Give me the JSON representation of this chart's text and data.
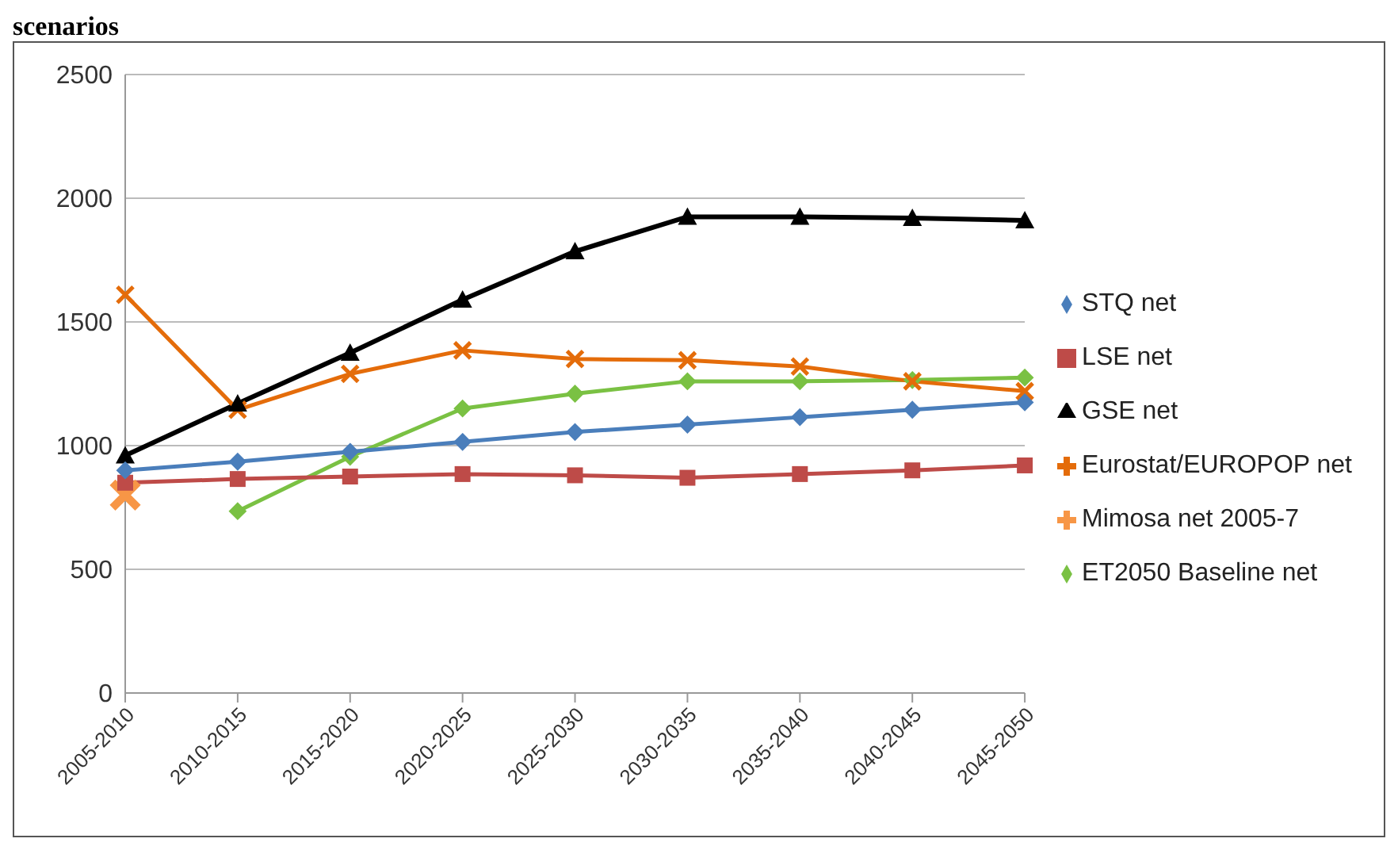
{
  "chart_data": {
    "type": "line",
    "title": "scenarios",
    "categories": [
      "2005-2010",
      "2010-2015",
      "2015-2020",
      "2020-2025",
      "2025-2030",
      "2030-2035",
      "2035-2040",
      "2040-2045",
      "2045-2050"
    ],
    "series": [
      {
        "name": "STQ net",
        "color": "#4a7ebb",
        "marker": "diamond",
        "values": [
          900,
          935,
          975,
          1015,
          1055,
          1085,
          1115,
          1145,
          1175
        ]
      },
      {
        "name": "LSE net",
        "color": "#be4b48",
        "marker": "square",
        "values": [
          850,
          865,
          875,
          885,
          880,
          870,
          885,
          900,
          920
        ]
      },
      {
        "name": "GSE net",
        "color": "#000000",
        "marker": "triangle",
        "values": [
          960,
          1170,
          1375,
          1590,
          1785,
          1925,
          1925,
          1920,
          1910
        ]
      },
      {
        "name": "Eurostat/EUROPOP net",
        "color": "#e46c0a",
        "marker": "cross",
        "values": [
          1610,
          1145,
          1290,
          1385,
          1350,
          1345,
          1320,
          1260,
          1220
        ]
      },
      {
        "name": "Mimosa net 2005-7",
        "color": "#f79646",
        "type": "scatter",
        "marker": "cross",
        "values": [
          800,
          null,
          null,
          null,
          null,
          null,
          null,
          null,
          null
        ]
      },
      {
        "name": "ET2050 Baseline net",
        "color": "#7ac143",
        "marker": "diamond",
        "values": [
          null,
          735,
          955,
          1150,
          1210,
          1260,
          1260,
          1265,
          1275
        ]
      }
    ],
    "ylim": [
      0,
      2500
    ],
    "yticks": [
      0,
      500,
      1000,
      1500,
      2000,
      2500
    ],
    "grid": "y",
    "legend": "right"
  }
}
